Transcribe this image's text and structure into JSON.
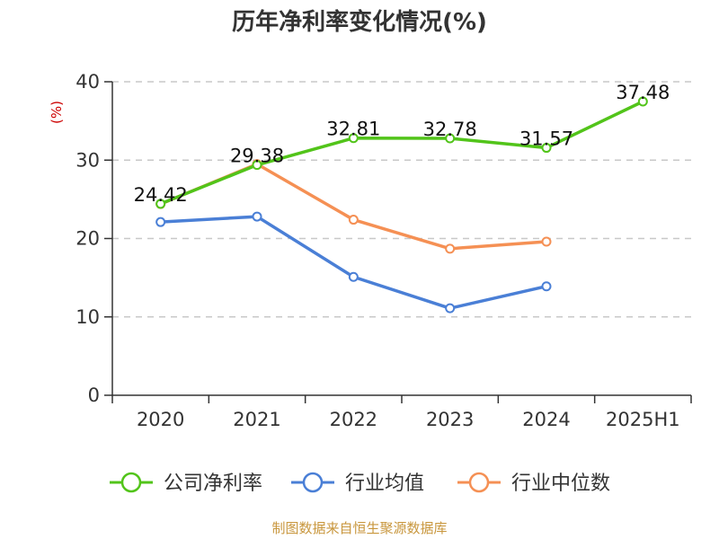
{
  "chart_data": {
    "type": "line",
    "title": "历年净利率变化情况(%)",
    "unit_label": "(%)",
    "categories": [
      "2020",
      "2021",
      "2022",
      "2023",
      "2024",
      "2025H1"
    ],
    "ylim": [
      0,
      40
    ],
    "yticks": [
      "0",
      "10",
      "20",
      "30",
      "40"
    ],
    "grid": true,
    "legend_position": "bottom",
    "series": [
      {
        "name": "公司净利率",
        "color": "#52c41a",
        "values": [
          24.42,
          29.38,
          32.81,
          32.78,
          31.57,
          37.48
        ],
        "labels": [
          "24.42",
          "29.38",
          "32.81",
          "32.78",
          "31.57",
          "37.48"
        ]
      },
      {
        "name": "行业均值",
        "color": "#4a7fd6",
        "values": [
          22.1,
          22.8,
          15.1,
          11.1,
          13.9,
          null
        ]
      },
      {
        "name": "行业中位数",
        "color": "#f59054",
        "values": [
          24.4,
          29.5,
          22.4,
          18.7,
          19.6,
          null
        ]
      }
    ]
  },
  "footer": {
    "source": "制图数据来自恒生聚源数据库"
  }
}
